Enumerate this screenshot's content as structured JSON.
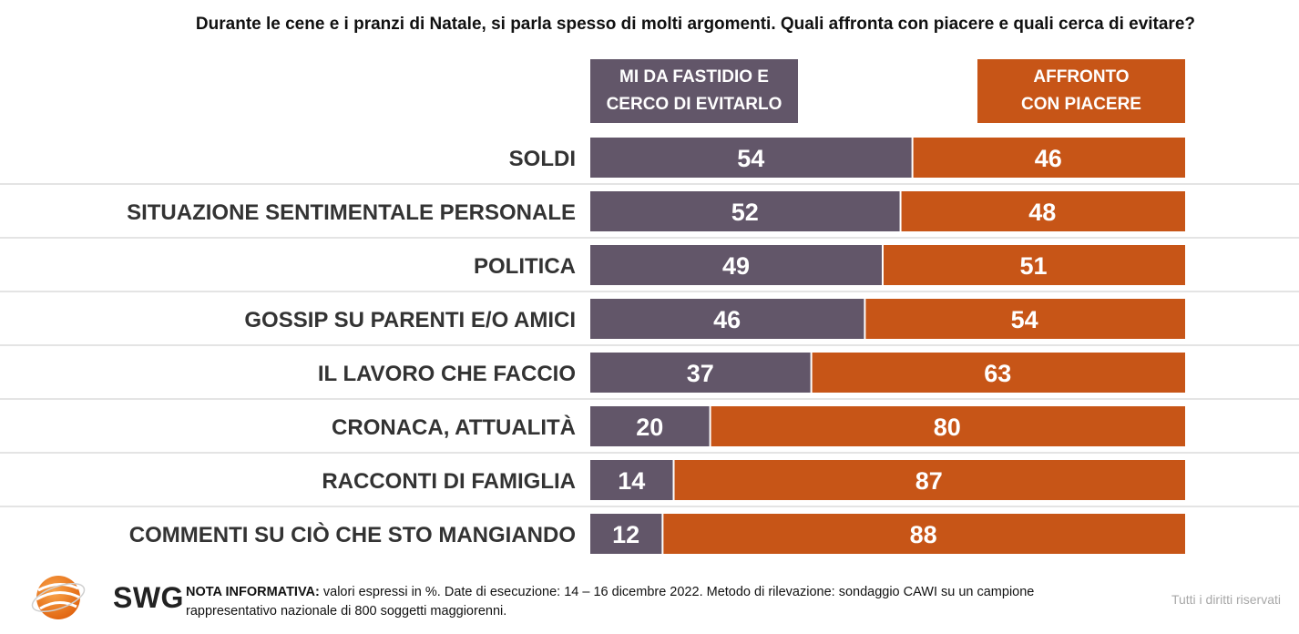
{
  "title": "Durante le cene e i pranzi di Natale, si parla spesso di molti argomenti. Quali affronta con piacere e quali cerca di evitare?",
  "colors": {
    "avoid": "#625669",
    "enjoy": "#c75517",
    "divider": "#c8c8c8",
    "logo_orange": "#ef7d1a"
  },
  "chart_data": {
    "type": "bar",
    "orientation": "horizontal-stacked",
    "categories": [
      "SOLDI",
      "SITUAZIONE SENTIMENTALE PERSONALE",
      "POLITICA",
      "GOSSIP SU PARENTI E/O AMICI",
      "IL LAVORO CHE FACCIO",
      "CRONACA, ATTUALITÀ",
      "RACCONTI DI FAMIGLIA",
      "COMMENTI SU CIÒ CHE STO MANGIANDO"
    ],
    "series": [
      {
        "name": "MI DA FASTIDIO E\nCERCO DI EVITARLO",
        "values": [
          54,
          52,
          49,
          46,
          37,
          20,
          14,
          12
        ]
      },
      {
        "name": "AFFRONTO\nCON PIACERE",
        "values": [
          46,
          48,
          51,
          54,
          63,
          80,
          87,
          88
        ]
      }
    ],
    "legend_placement": "top"
  },
  "footer": {
    "note_label": "NOTA INFORMATIVA:",
    "note_text": " valori espressi in %. Date di esecuzione: 14 – 16 dicembre 2022. Metodo di rilevazione: sondaggio CAWI su un campione rappresentativo nazionale di 800 soggetti maggiorenni.",
    "rights": "Tutti i diritti riservati"
  },
  "logo": {
    "text": "SWG",
    "icon": "swg-globe-icon"
  }
}
